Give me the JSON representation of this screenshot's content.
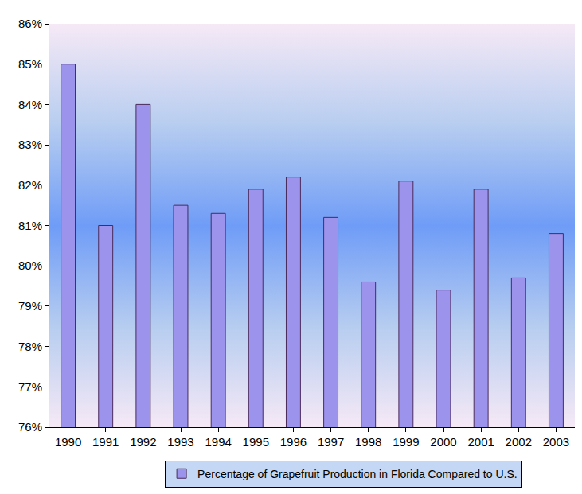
{
  "chart_data": {
    "type": "bar",
    "categories": [
      "1990",
      "1991",
      "1992",
      "1993",
      "1994",
      "1995",
      "1996",
      "1997",
      "1998",
      "1999",
      "2000",
      "2001",
      "2002",
      "2003"
    ],
    "series": [
      {
        "name": "Percentage of Grapefruit Production in Florida Compared to U.S.",
        "color": "#9c94ec",
        "values": [
          85.0,
          81.0,
          84.0,
          81.5,
          81.3,
          81.9,
          82.2,
          81.2,
          79.6,
          82.1,
          79.4,
          81.9,
          79.7,
          80.8
        ]
      }
    ],
    "ylim": [
      76,
      86
    ],
    "yticks": [
      {
        "value": 76,
        "label": "76%"
      },
      {
        "value": 77,
        "label": "77%"
      },
      {
        "value": 78,
        "label": "78%"
      },
      {
        "value": 79,
        "label": "79%"
      },
      {
        "value": 80,
        "label": "80%"
      },
      {
        "value": 81,
        "label": "81%"
      },
      {
        "value": 82,
        "label": "82%"
      },
      {
        "value": 83,
        "label": "83%"
      },
      {
        "value": 84,
        "label": "84%"
      },
      {
        "value": 85,
        "label": "85%"
      },
      {
        "value": 86,
        "label": "86%"
      }
    ],
    "grid": false,
    "legend": "bottom"
  }
}
